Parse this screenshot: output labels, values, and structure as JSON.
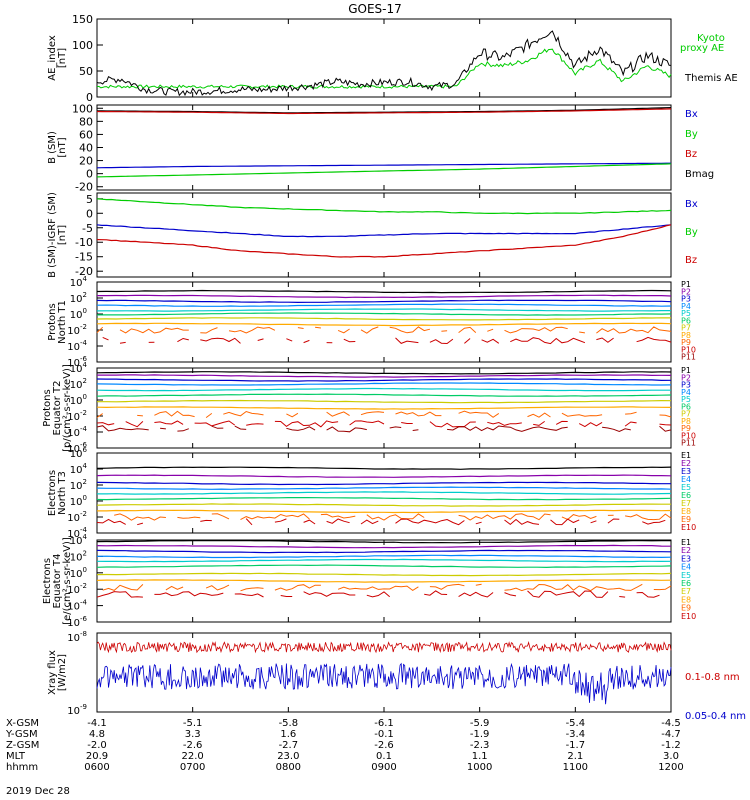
{
  "title": "GOES-17",
  "date": "2019 Dec 28",
  "colors": {
    "black": "#000000",
    "red": "#cc0000",
    "green": "#00cc00",
    "blue": "#0000cc",
    "p_channels": [
      "#000000",
      "#8800aa",
      "#0000cc",
      "#0088ff",
      "#00cccc",
      "#00cc66",
      "#cccc00",
      "#ffaa00",
      "#ff6600",
      "#cc0000",
      "#990000"
    ],
    "e_channels": [
      "#000000",
      "#8800aa",
      "#0000cc",
      "#0088ff",
      "#00cccc",
      "#00cc66",
      "#cccc00",
      "#ffaa00",
      "#ff6600",
      "#cc0000"
    ]
  },
  "ephemeris": {
    "row_labels": [
      "X-GSM",
      "Y-GSM",
      "Z-GSM",
      "MLT",
      "hhmm"
    ],
    "columns": [
      [
        "-4.1",
        "4.8",
        "-2.0",
        "20.9",
        "0600"
      ],
      [
        "-5.1",
        "3.3",
        "-2.6",
        "22.0",
        "0700"
      ],
      [
        "-5.8",
        "1.6",
        "-2.7",
        "23.0",
        "0800"
      ],
      [
        "-6.1",
        "-0.1",
        "-2.6",
        "0.1",
        "0900"
      ],
      [
        "-5.9",
        "-1.9",
        "-2.3",
        "1.1",
        "1000"
      ],
      [
        "-5.4",
        "-3.4",
        "-1.7",
        "2.1",
        "1100"
      ],
      [
        "-4.5",
        "-4.7",
        "-1.2",
        "3.0",
        "1200"
      ]
    ]
  },
  "chart_data": [
    {
      "type": "line",
      "ylabel": "AE_index [nT]",
      "yticks": [
        "150",
        "100",
        "50",
        "0"
      ],
      "ylim": [
        0,
        150
      ],
      "x": [
        0,
        0.25,
        0.5,
        0.75,
        1,
        1.25,
        1.5,
        1.75,
        2,
        2.25,
        2.5,
        2.75,
        3,
        3.25,
        3.5,
        3.75,
        4,
        4.25,
        4.5,
        4.75,
        5,
        5.25,
        5.5,
        5.75,
        6
      ],
      "series": [
        {
          "name": "Kyoto proxy AE",
          "color": "#00cc00",
          "values": [
            20,
            20,
            20,
            20,
            20,
            20,
            20,
            20,
            20,
            20,
            20,
            20,
            20,
            20,
            20,
            20,
            65,
            60,
            70,
            95,
            45,
            70,
            30,
            60,
            40
          ]
        },
        {
          "name": "Themis AE",
          "color": "#000000",
          "values": [
            30,
            35,
            15,
            10,
            10,
            12,
            15,
            14,
            18,
            22,
            30,
            25,
            28,
            30,
            20,
            25,
            85,
            75,
            100,
            130,
            60,
            95,
            45,
            80,
            60
          ]
        }
      ],
      "legend": [
        "Kyoto",
        "proxy AE",
        "Themis AE"
      ]
    },
    {
      "type": "line",
      "ylabel": "B (SM) [nT]",
      "yticks": [
        "100",
        "80",
        "60",
        "40",
        "20",
        "0",
        "-20"
      ],
      "ylim": [
        -25,
        105
      ],
      "x": [
        0,
        1,
        2,
        3,
        4,
        5,
        6
      ],
      "series": [
        {
          "name": "Bx",
          "color": "#0000cc",
          "values": [
            9,
            11,
            12,
            13,
            14,
            15,
            16
          ]
        },
        {
          "name": "By",
          "color": "#00cc00",
          "values": [
            -5,
            -2,
            1,
            4,
            7,
            11,
            15
          ]
        },
        {
          "name": "Bz",
          "color": "#cc0000",
          "values": [
            95,
            94,
            92,
            93,
            94,
            96,
            99
          ]
        },
        {
          "name": "Bmag",
          "color": "#000000",
          "values": [
            96,
            95,
            93,
            94,
            95,
            97,
            101
          ]
        }
      ]
    },
    {
      "type": "line",
      "ylabel": "B (SM)-IGRF (SM) [nT]",
      "yticks": [
        "5",
        "0",
        "-5",
        "-10",
        "-15",
        "-20"
      ],
      "ylim": [
        -22,
        7
      ],
      "x": [
        0,
        0.5,
        1,
        1.5,
        2,
        2.5,
        3,
        3.5,
        4,
        4.5,
        5,
        5.5,
        6
      ],
      "series": [
        {
          "name": "Bx",
          "color": "#0000cc",
          "values": [
            -4,
            -5,
            -6,
            -7,
            -8,
            -8,
            -7.5,
            -7,
            -7,
            -7,
            -7,
            -5.5,
            -4
          ]
        },
        {
          "name": "By",
          "color": "#00cc00",
          "values": [
            5,
            4,
            3,
            2,
            1.5,
            1,
            0.5,
            0.5,
            0,
            0,
            0,
            0.5,
            1
          ]
        },
        {
          "name": "Bz",
          "color": "#cc0000",
          "values": [
            -9,
            -10,
            -11,
            -13,
            -14,
            -15,
            -15,
            -14,
            -13,
            -12,
            -11,
            -8,
            -4
          ]
        }
      ]
    },
    {
      "type": "line",
      "ylabel": "Protons North T1",
      "ylim_log": [
        -6,
        4
      ],
      "yticks": [
        "10^4",
        "10^2",
        "10^0",
        "10^-2",
        "10^-4",
        "10^-6"
      ],
      "legend": [
        "P1",
        "P2",
        "P3",
        "P4",
        "P5",
        "P6",
        "P7",
        "P8",
        "P9",
        "P10",
        "P11"
      ],
      "levels_log": [
        2.8,
        2.2,
        1.6,
        1.1,
        0.5,
        0.0,
        -0.6,
        -1.3,
        -2.0,
        -3.3,
        null
      ]
    },
    {
      "type": "line",
      "ylabel": "Protons Equator T2 [p/(cm²-s-sr-keV)]",
      "ylim_log": [
        -6,
        4
      ],
      "yticks": [
        "10^4",
        "10^2",
        "10^0",
        "10^-2",
        "10^-4",
        "10^-6"
      ],
      "legend": [
        "P1",
        "P2",
        "P3",
        "P4",
        "P5",
        "P6",
        "P7",
        "P8",
        "P9",
        "P10",
        "P11"
      ],
      "levels_log": [
        3.4,
        3.0,
        2.5,
        2.0,
        1.3,
        0.6,
        -0.2,
        -1.0,
        -1.8,
        -3.0,
        -3.6
      ]
    },
    {
      "type": "line",
      "ylabel": "Electrons North T3",
      "ylim_log": [
        -4,
        6
      ],
      "yticks": [
        "10^6",
        "10^4",
        "10^2",
        "10^0",
        "10^-2",
        "10^-4"
      ],
      "legend": [
        "E1",
        "E2",
        "E3",
        "E4",
        "E5",
        "E6",
        "E7",
        "E8",
        "E9",
        "E10"
      ],
      "levels_log": [
        4.1,
        3.1,
        2.2,
        1.6,
        1.0,
        0.3,
        -0.5,
        -1.3,
        -2.0,
        -2.6
      ]
    },
    {
      "type": "line",
      "ylabel": "Electrons Equator T4 [e/(cm²-s-sr-keV)]",
      "ylim_log": [
        -6,
        4
      ],
      "yticks": [
        "10^4",
        "10^2",
        "10^0",
        "10^-2",
        "10^-4",
        "10^-6"
      ],
      "legend": [
        "E1",
        "E2",
        "E3",
        "E4",
        "E5",
        "E6",
        "E7",
        "E8",
        "E9",
        "E10"
      ],
      "levels_log": [
        3.8,
        3.2,
        2.6,
        2.0,
        1.5,
        0.8,
        -0.2,
        -1.0,
        -1.8,
        -2.6
      ]
    },
    {
      "type": "line",
      "ylabel": "Xray flux [W/m2]",
      "yticks": [
        "10^-8",
        "10^-9"
      ],
      "series": [
        {
          "name": "0.1-0.8 nm",
          "color": "#cc0000",
          "level": 0.82
        },
        {
          "name": "0.05-0.4 nm",
          "color": "#0000cc",
          "level": 0.45
        }
      ]
    }
  ]
}
